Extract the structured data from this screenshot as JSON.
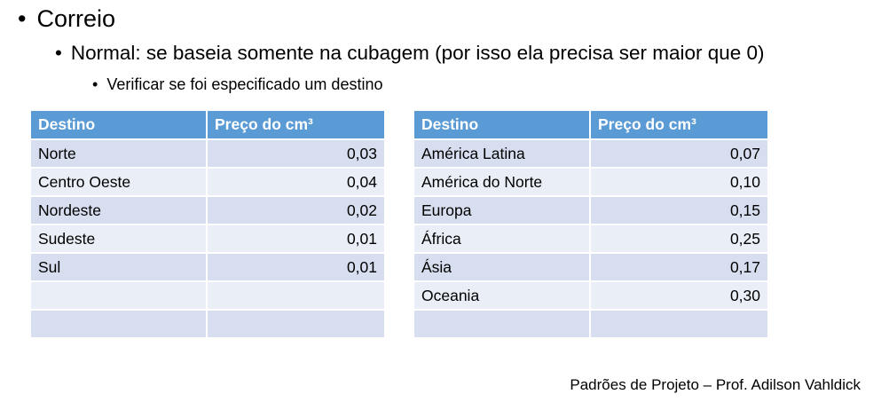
{
  "slide": {
    "bullet1": "Correio",
    "bullet2": "Normal: se baseia somente na cubagem (por isso ela precisa ser maior que 0)",
    "bullet3": "Verificar se foi especificado um destino"
  },
  "table_left": {
    "headers": [
      "Destino",
      "Preço do cm³"
    ],
    "rows": [
      [
        "Norte",
        "0,03"
      ],
      [
        "Centro Oeste",
        "0,04"
      ],
      [
        "Nordeste",
        "0,02"
      ],
      [
        "Sudeste",
        "0,01"
      ],
      [
        "Sul",
        "0,01"
      ],
      [
        "",
        ""
      ],
      [
        "",
        ""
      ]
    ]
  },
  "table_right": {
    "headers": [
      "Destino",
      "Preço do cm³"
    ],
    "rows": [
      [
        "América Latina",
        "0,07"
      ],
      [
        "América do Norte",
        "0,10"
      ],
      [
        "Europa",
        "0,15"
      ],
      [
        "África",
        "0,25"
      ],
      [
        "Ásia",
        "0,17"
      ],
      [
        "Oceania",
        "0,30"
      ],
      [
        "",
        ""
      ]
    ]
  },
  "footer": "Padrões de Projeto – Prof. Adilson Vahldick"
}
